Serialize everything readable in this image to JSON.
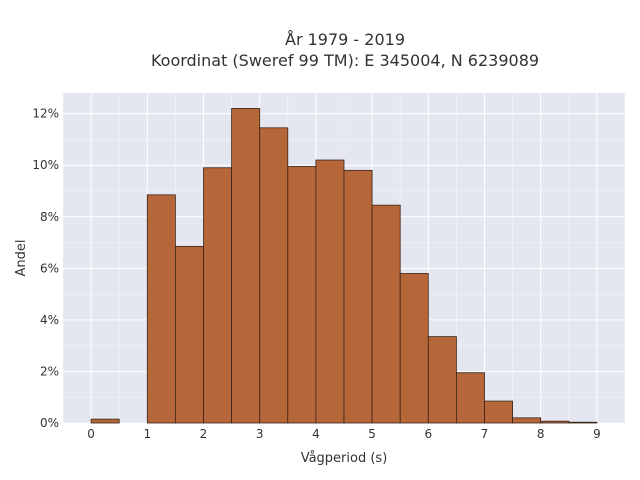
{
  "chart_data": {
    "type": "bar",
    "title_line1": "År 1979 - 2019",
    "title_line2": "Koordinat (Sweref 99 TM): E 345004, N 6239089",
    "xlabel": "Vågperiod (s)",
    "ylabel": "Andel",
    "x_ticks": [
      "0",
      "1",
      "2",
      "3",
      "4",
      "5",
      "6",
      "7",
      "8",
      "9"
    ],
    "y_ticks": [
      "0%",
      "2%",
      "4%",
      "6%",
      "8%",
      "10%",
      "12%"
    ],
    "xlim": [
      -0.5,
      9.5
    ],
    "ylim": [
      0,
      12.8
    ],
    "bin_width": 0.5,
    "bins": [
      {
        "x": 0.0,
        "value": 0.15
      },
      {
        "x": 1.0,
        "value": 8.85
      },
      {
        "x": 1.5,
        "value": 6.85
      },
      {
        "x": 2.0,
        "value": 9.9
      },
      {
        "x": 2.5,
        "value": 12.2
      },
      {
        "x": 3.0,
        "value": 11.45
      },
      {
        "x": 3.5,
        "value": 9.95
      },
      {
        "x": 4.0,
        "value": 10.2
      },
      {
        "x": 4.5,
        "value": 9.8
      },
      {
        "x": 5.0,
        "value": 8.45
      },
      {
        "x": 5.5,
        "value": 5.8
      },
      {
        "x": 6.0,
        "value": 3.35
      },
      {
        "x": 6.5,
        "value": 1.95
      },
      {
        "x": 7.0,
        "value": 0.85
      },
      {
        "x": 7.5,
        "value": 0.2
      },
      {
        "x": 8.0,
        "value": 0.07
      },
      {
        "x": 8.5,
        "value": 0.03
      }
    ],
    "grid": true,
    "colors": {
      "bar_fill": "#b5673a",
      "bar_stroke": "#3a2418",
      "plot_bg": "#e5e7f0",
      "grid": "#ffffff"
    }
  }
}
